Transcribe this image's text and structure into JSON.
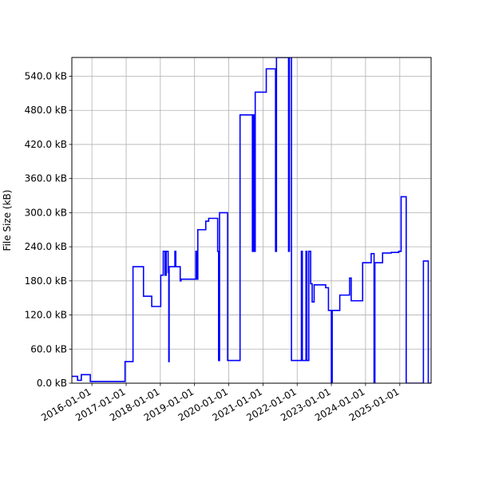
{
  "chart_data": {
    "type": "line",
    "title": "",
    "xlabel": "",
    "ylabel": "File Size (kB)",
    "grid": true,
    "legend": "none",
    "xlim": [
      "2015-06-01",
      "2025-12-01"
    ],
    "ylim": [
      0,
      573
    ],
    "x_ticks": [
      "2016-01-01",
      "2017-01-01",
      "2018-01-01",
      "2019-01-01",
      "2020-01-01",
      "2021-01-01",
      "2022-01-01",
      "2023-01-01",
      "2024-01-01",
      "2025-01-01"
    ],
    "y_ticks": [
      0,
      60,
      120,
      180,
      240,
      300,
      360,
      420,
      480,
      540
    ],
    "y_tick_labels": [
      "0.0 kB",
      "60.0 kB",
      "120.0 kB",
      "180.0 kB",
      "240.0 kB",
      "300.0 kB",
      "360.0 kB",
      "420.0 kB",
      "480.0 kB",
      "540.0 kB"
    ],
    "series": [
      {
        "color": "#0000ff",
        "step": true,
        "points": [
          [
            "2015-06-01",
            12
          ],
          [
            "2015-08-01",
            5
          ],
          [
            "2015-09-10",
            15
          ],
          [
            "2015-12-15",
            3
          ],
          [
            "2016-10-01",
            3
          ],
          [
            "2016-12-20",
            38
          ],
          [
            "2017-03-15",
            205
          ],
          [
            "2017-07-05",
            153
          ],
          [
            "2017-10-01",
            135
          ],
          [
            "2018-01-05",
            190
          ],
          [
            "2018-02-01",
            232
          ],
          [
            "2018-02-20",
            190
          ],
          [
            "2018-03-05",
            232
          ],
          [
            "2018-03-25",
            195
          ],
          [
            "2018-04-01",
            38
          ],
          [
            "2018-04-05",
            205
          ],
          [
            "2018-06-05",
            232
          ],
          [
            "2018-06-15",
            205
          ],
          [
            "2018-08-01",
            180
          ],
          [
            "2018-08-10",
            183
          ],
          [
            "2019-01-15",
            232
          ],
          [
            "2019-01-25",
            183
          ],
          [
            "2019-02-05",
            270
          ],
          [
            "2019-05-01",
            285
          ],
          [
            "2019-06-01",
            290
          ],
          [
            "2019-09-05",
            232
          ],
          [
            "2019-09-15",
            40
          ],
          [
            "2019-09-25",
            300
          ],
          [
            "2019-12-20",
            40
          ],
          [
            "2020-05-01",
            472
          ],
          [
            "2020-09-10",
            232
          ],
          [
            "2020-09-20",
            472
          ],
          [
            "2020-09-30",
            232
          ],
          [
            "2020-10-10",
            512
          ],
          [
            "2021-02-05",
            553
          ],
          [
            "2021-05-15",
            232
          ],
          [
            "2021-05-25",
            573
          ],
          [
            "2021-10-01",
            232
          ],
          [
            "2021-10-10",
            573
          ],
          [
            "2021-11-01",
            40
          ],
          [
            "2022-02-15",
            232
          ],
          [
            "2022-02-25",
            40
          ],
          [
            "2022-04-05",
            232
          ],
          [
            "2022-04-15",
            40
          ],
          [
            "2022-05-05",
            232
          ],
          [
            "2022-05-25",
            175
          ],
          [
            "2022-06-10",
            143
          ],
          [
            "2022-07-01",
            173
          ],
          [
            "2022-11-01",
            168
          ],
          [
            "2022-12-01",
            128
          ],
          [
            "2023-01-01",
            0
          ],
          [
            "2023-01-10",
            128
          ],
          [
            "2023-04-01",
            155
          ],
          [
            "2023-05-01",
            155
          ],
          [
            "2023-07-15",
            185
          ],
          [
            "2023-08-01",
            145
          ],
          [
            "2023-12-01",
            212
          ],
          [
            "2024-03-01",
            228
          ],
          [
            "2024-04-01",
            0
          ],
          [
            "2024-04-10",
            212
          ],
          [
            "2024-07-01",
            229
          ],
          [
            "2024-10-01",
            230
          ],
          [
            "2024-12-20",
            232
          ],
          [
            "2025-01-15",
            328
          ],
          [
            "2025-03-10",
            0
          ],
          [
            "2025-09-05",
            0
          ],
          [
            "2025-09-10",
            215
          ],
          [
            "2025-11-01",
            0
          ],
          [
            "2025-11-10",
            0
          ]
        ]
      }
    ]
  }
}
